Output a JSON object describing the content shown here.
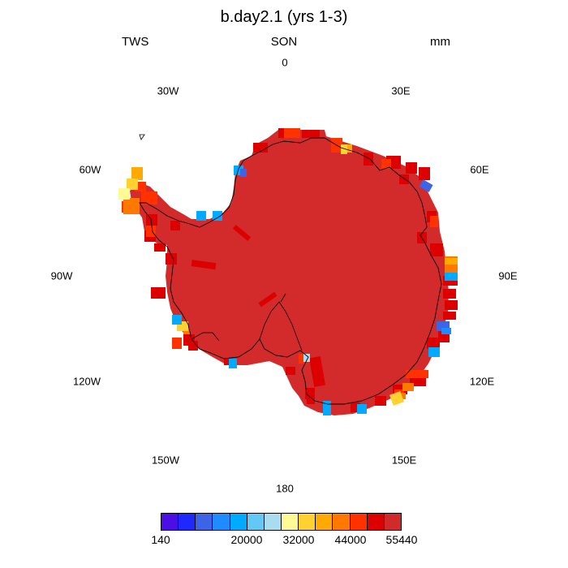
{
  "title": "b.day2.1 (yrs 1-3)",
  "left_string": "TWS",
  "center_string": "SON",
  "right_string": "mm",
  "longitude_labels": {
    "lon_0": "0",
    "lon_30e": "30E",
    "lon_60e": "60E",
    "lon_90e": "90E",
    "lon_120e": "120E",
    "lon_150e": "150E",
    "lon_180": "180",
    "lon_150w": "150W",
    "lon_120w": "120W",
    "lon_90w": "90W",
    "lon_60w": "60W",
    "lon_30w": "30W"
  },
  "colorbar": {
    "colors": [
      "#4b0fe6",
      "#1e28ff",
      "#3c64e6",
      "#1e8cff",
      "#00aaff",
      "#64c8f5",
      "#aadcf0",
      "#fffa96",
      "#ffd232",
      "#ffaa00",
      "#ff7800",
      "#ff3200",
      "#dc0000",
      "#d02a2a"
    ],
    "labels": {
      "l0": "140",
      "l1": "20000",
      "l2": "32000",
      "l3": "44000",
      "l4": "55440"
    }
  },
  "field": {
    "dominant_color": "#d32b2b",
    "coastline_color": "#000000"
  }
}
